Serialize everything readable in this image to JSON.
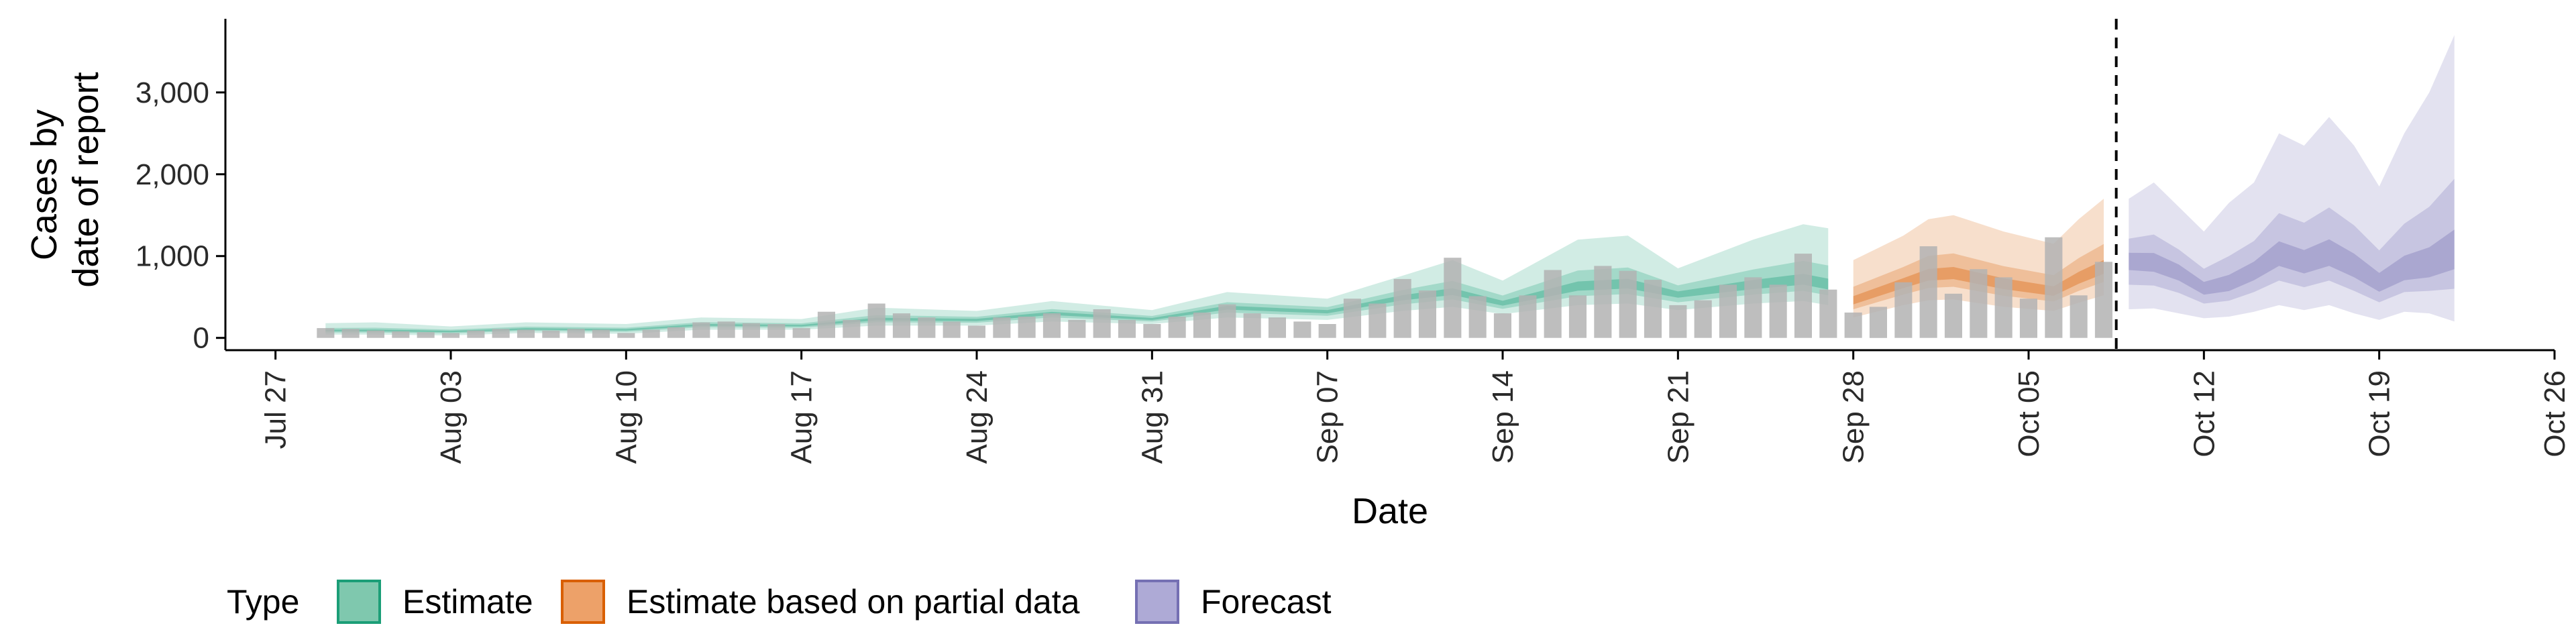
{
  "chart_data": {
    "type": "area",
    "xlabel": "Date",
    "ylabel_lines": [
      "Cases by",
      "date of report"
    ],
    "x_ticks": [
      "Jul 27",
      "Aug 03",
      "Aug 10",
      "Aug 17",
      "Aug 24",
      "Aug 31",
      "Sep 07",
      "Sep 14",
      "Sep 21",
      "Sep 28",
      "Oct 05",
      "Oct 12",
      "Oct 19",
      "Oct 26"
    ],
    "y_ticks": [
      0,
      1000,
      2000,
      3000
    ],
    "y_tick_labels": [
      "0",
      "1,000",
      "2,000",
      "3,000"
    ],
    "xlim": [
      "2020-07-25",
      "2020-10-26"
    ],
    "ylim": [
      -150,
      3900
    ],
    "report_cutoff": "2020-10-08",
    "legend": {
      "title": "Type",
      "position": "bottom",
      "items": [
        {
          "label": "Estimate",
          "color": "#1b9e77",
          "fill": "#7fc8ae"
        },
        {
          "label": "Estimate based on partial data",
          "color": "#d95f02",
          "fill": "#eda169"
        },
        {
          "label": "Forecast",
          "color": "#7570b3",
          "fill": "#aeaad6"
        }
      ]
    },
    "colors": {
      "estimate": "#1b9e77",
      "partial": "#d95f02",
      "forecast": "#7570b3",
      "bars": "#b3b3b3"
    },
    "reported_cases": [
      [
        "2020-07-29",
        120
      ],
      [
        "2020-07-30",
        110
      ],
      [
        "2020-07-31",
        90
      ],
      [
        "2020-08-01",
        80
      ],
      [
        "2020-08-02",
        70
      ],
      [
        "2020-08-03",
        60
      ],
      [
        "2020-08-04",
        90
      ],
      [
        "2020-08-05",
        110
      ],
      [
        "2020-08-06",
        100
      ],
      [
        "2020-08-07",
        90
      ],
      [
        "2020-08-08",
        110
      ],
      [
        "2020-08-09",
        100
      ],
      [
        "2020-08-10",
        60
      ],
      [
        "2020-08-11",
        100
      ],
      [
        "2020-08-12",
        130
      ],
      [
        "2020-08-13",
        190
      ],
      [
        "2020-08-14",
        200
      ],
      [
        "2020-08-15",
        180
      ],
      [
        "2020-08-16",
        170
      ],
      [
        "2020-08-17",
        120
      ],
      [
        "2020-08-18",
        320
      ],
      [
        "2020-08-19",
        220
      ],
      [
        "2020-08-20",
        420
      ],
      [
        "2020-08-21",
        300
      ],
      [
        "2020-08-22",
        250
      ],
      [
        "2020-08-23",
        200
      ],
      [
        "2020-08-24",
        150
      ],
      [
        "2020-08-25",
        250
      ],
      [
        "2020-08-26",
        260
      ],
      [
        "2020-08-27",
        300
      ],
      [
        "2020-08-28",
        220
      ],
      [
        "2020-08-29",
        350
      ],
      [
        "2020-08-30",
        220
      ],
      [
        "2020-08-31",
        170
      ],
      [
        "2020-09-01",
        260
      ],
      [
        "2020-09-02",
        310
      ],
      [
        "2020-09-03",
        410
      ],
      [
        "2020-09-04",
        300
      ],
      [
        "2020-09-05",
        250
      ],
      [
        "2020-09-06",
        200
      ],
      [
        "2020-09-07",
        170
      ],
      [
        "2020-09-08",
        480
      ],
      [
        "2020-09-09",
        420
      ],
      [
        "2020-09-10",
        720
      ],
      [
        "2020-09-11",
        580
      ],
      [
        "2020-09-12",
        980
      ],
      [
        "2020-09-13",
        510
      ],
      [
        "2020-09-14",
        300
      ],
      [
        "2020-09-15",
        520
      ],
      [
        "2020-09-16",
        830
      ],
      [
        "2020-09-17",
        520
      ],
      [
        "2020-09-18",
        880
      ],
      [
        "2020-09-19",
        820
      ],
      [
        "2020-09-20",
        710
      ],
      [
        "2020-09-21",
        400
      ],
      [
        "2020-09-22",
        460
      ],
      [
        "2020-09-23",
        650
      ],
      [
        "2020-09-24",
        740
      ],
      [
        "2020-09-25",
        650
      ],
      [
        "2020-09-26",
        1030
      ],
      [
        "2020-09-27",
        590
      ],
      [
        "2020-09-28",
        310
      ],
      [
        "2020-09-29",
        380
      ],
      [
        "2020-09-30",
        680
      ],
      [
        "2020-10-01",
        1120
      ],
      [
        "2020-10-02",
        540
      ],
      [
        "2020-10-03",
        840
      ],
      [
        "2020-10-04",
        740
      ],
      [
        "2020-10-05",
        480
      ],
      [
        "2020-10-06",
        1230
      ],
      [
        "2020-10-07",
        520
      ],
      [
        "2020-10-08",
        930
      ]
    ],
    "estimate_band": [
      [
        "2020-07-29",
        40,
        90,
        180
      ],
      [
        "2020-07-31",
        40,
        90,
        190
      ],
      [
        "2020-08-03",
        30,
        80,
        140
      ],
      [
        "2020-08-06",
        60,
        110,
        190
      ],
      [
        "2020-08-10",
        50,
        100,
        170
      ],
      [
        "2020-08-13",
        100,
        160,
        250
      ],
      [
        "2020-08-17",
        100,
        150,
        230
      ],
      [
        "2020-08-20",
        150,
        230,
        370
      ],
      [
        "2020-08-24",
        150,
        220,
        330
      ],
      [
        "2020-08-27",
        200,
        300,
        450
      ],
      [
        "2020-08-31",
        170,
        230,
        340
      ],
      [
        "2020-09-03",
        250,
        370,
        560
      ],
      [
        "2020-09-07",
        220,
        320,
        480
      ],
      [
        "2020-09-10",
        330,
        490,
        760
      ],
      [
        "2020-09-12",
        380,
        560,
        950
      ],
      [
        "2020-09-14",
        290,
        420,
        700
      ],
      [
        "2020-09-17",
        400,
        620,
        1200
      ],
      [
        "2020-09-19",
        420,
        650,
        1250
      ],
      [
        "2020-09-21",
        340,
        530,
        850
      ],
      [
        "2020-09-24",
        420,
        640,
        1200
      ],
      [
        "2020-09-26",
        450,
        700,
        1390
      ],
      [
        "2020-09-27",
        400,
        640,
        1340
      ]
    ],
    "partial_band": [
      [
        "2020-09-28",
        250,
        450,
        950
      ],
      [
        "2020-09-30",
        400,
        660,
        1250
      ],
      [
        "2020-10-01",
        460,
        760,
        1450
      ],
      [
        "2020-10-02",
        470,
        780,
        1500
      ],
      [
        "2020-10-04",
        380,
        650,
        1300
      ],
      [
        "2020-10-06",
        330,
        560,
        1150
      ],
      [
        "2020-10-07",
        430,
        720,
        1450
      ],
      [
        "2020-10-08",
        520,
        850,
        1700
      ]
    ],
    "forecast_band": [
      [
        "2020-10-09",
        350,
        950,
        1700
      ],
      [
        "2020-10-10",
        360,
        920,
        1900
      ],
      [
        "2020-10-11",
        300,
        800,
        1600
      ],
      [
        "2020-10-12",
        240,
        600,
        1300
      ],
      [
        "2020-10-13",
        260,
        650,
        1650
      ],
      [
        "2020-10-14",
        320,
        800,
        1900
      ],
      [
        "2020-10-15",
        400,
        1000,
        2500
      ],
      [
        "2020-10-16",
        340,
        900,
        2350
      ],
      [
        "2020-10-17",
        400,
        1000,
        2700
      ],
      [
        "2020-10-18",
        300,
        850,
        2350
      ],
      [
        "2020-10-19",
        220,
        650,
        1850
      ],
      [
        "2020-10-20",
        320,
        800,
        2500
      ],
      [
        "2020-10-21",
        300,
        850,
        3000
      ],
      [
        "2020-10-22",
        200,
        1000,
        3700
      ]
    ]
  }
}
